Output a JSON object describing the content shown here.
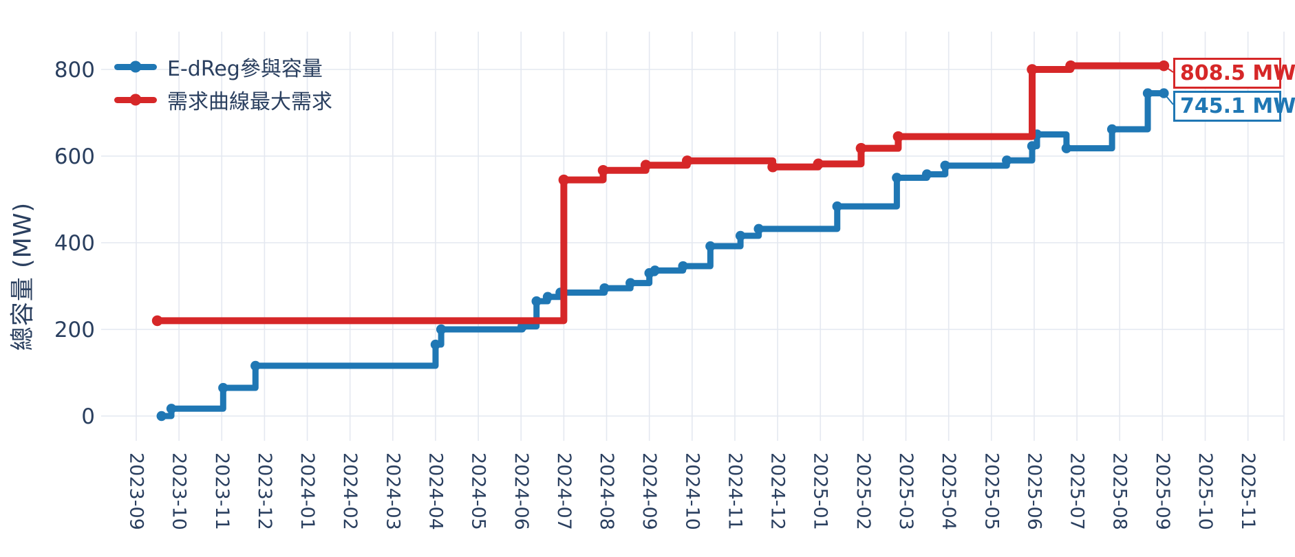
{
  "chart_data": {
    "type": "line",
    "line_shape": "step-after",
    "title": "",
    "xlabel": "",
    "ylabel": "總容量 (MW)",
    "ylim": [
      -65,
      890
    ],
    "grid": true,
    "legend_position": "top-left-inside",
    "y_ticks": [
      0,
      200,
      400,
      600,
      800
    ],
    "x_ticks": [
      "2023-09",
      "2023-10",
      "2023-11",
      "2023-12",
      "2024-01",
      "2024-02",
      "2024-03",
      "2024-04",
      "2024-05",
      "2024-06",
      "2024-07",
      "2024-08",
      "2024-09",
      "2024-10",
      "2024-11",
      "2024-12",
      "2025-01",
      "2025-02",
      "2025-03",
      "2025-04",
      "2025-05",
      "2025-06",
      "2025-07",
      "2025-08",
      "2025-09",
      "2025-10",
      "2025-11"
    ],
    "series": [
      {
        "name": "E-dReg參與容量",
        "color": "#1f77b4",
        "final_label": "745.1 MW",
        "points": [
          [
            "2023-09-19",
            0
          ],
          [
            "2023-09-26",
            17
          ],
          [
            "2023-11-02",
            65
          ],
          [
            "2023-11-25",
            116
          ],
          [
            "2024-04-01",
            165
          ],
          [
            "2024-04-05",
            200
          ],
          [
            "2024-06-02",
            207
          ],
          [
            "2024-06-12",
            265
          ],
          [
            "2024-06-20",
            275
          ],
          [
            "2024-06-29",
            285
          ],
          [
            "2024-07-30",
            295
          ],
          [
            "2024-08-18",
            307
          ],
          [
            "2024-09-01",
            330
          ],
          [
            "2024-09-05",
            336
          ],
          [
            "2024-09-25",
            346
          ],
          [
            "2024-10-14",
            392
          ],
          [
            "2024-11-05",
            416
          ],
          [
            "2024-11-18",
            432
          ],
          [
            "2025-01-13",
            484
          ],
          [
            "2025-02-25",
            550
          ],
          [
            "2025-03-16",
            558
          ],
          [
            "2025-03-29",
            578
          ],
          [
            "2025-05-12",
            590
          ],
          [
            "2025-05-30",
            623
          ],
          [
            "2025-06-03",
            650
          ],
          [
            "2025-06-24",
            618
          ],
          [
            "2025-07-26",
            662
          ],
          [
            "2025-08-21",
            745.1
          ],
          [
            "2025-09-02",
            745.1
          ]
        ]
      },
      {
        "name": "需求曲線最大需求",
        "color": "#d62728",
        "final_label": "808.5 MW",
        "points": [
          [
            "2023-09-16",
            220
          ],
          [
            "2024-07-01",
            545
          ],
          [
            "2024-07-29",
            567
          ],
          [
            "2024-08-29",
            579
          ],
          [
            "2024-09-28",
            589
          ],
          [
            "2024-11-28",
            575
          ],
          [
            "2024-12-30",
            582
          ],
          [
            "2025-01-30",
            618
          ],
          [
            "2025-02-26",
            645
          ],
          [
            "2025-05-30",
            800
          ],
          [
            "2025-06-27",
            808.5
          ],
          [
            "2025-09-02",
            808.5
          ]
        ]
      }
    ],
    "annotations": [
      {
        "text": "808.5 MW",
        "color": "#d62728"
      },
      {
        "text": "745.1 MW",
        "color": "#1f77b4"
      }
    ]
  },
  "colors": {
    "text": "#2a3f5f",
    "grid": "#e4e8f0",
    "background": "#ffffff"
  }
}
